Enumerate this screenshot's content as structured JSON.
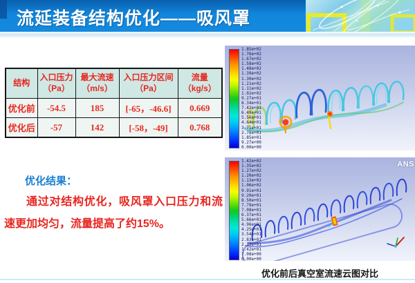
{
  "header": {
    "title": "流延装备结构优化——吸风罩"
  },
  "table": {
    "columns": [
      {
        "line1": "结构",
        "line2": ""
      },
      {
        "line1": "入口压力",
        "line2": "（Pa）"
      },
      {
        "line1": "最大流速",
        "line2": "（m/s）"
      },
      {
        "line1": "入口压力区间",
        "line2": "（Pa）"
      },
      {
        "line1": "流量",
        "line2": "（kg/s）"
      }
    ],
    "rows": [
      {
        "label": "优化前",
        "values": [
          "-54.5",
          "185",
          "[-65，-46.6]",
          "0.669"
        ]
      },
      {
        "label": "优化后",
        "values": [
          "-57",
          "142",
          "[-58，-49]",
          "0.768"
        ]
      }
    ]
  },
  "result": {
    "heading": "优化结果：",
    "body": "通过对结构优化，吸风罩入口压力和流速更加均匀，流量提高了约15%。"
  },
  "figures": {
    "caption": "优化前后真空室流速云图对比",
    "watermark": "ANS",
    "before": {
      "legend": [
        "1.85e+02",
        "1.76e+02",
        "1.67e+02",
        "1.58e+02",
        "1.48e+02",
        "1.39e+02",
        "1.30e+02",
        "1.21e+02",
        "1.11e+02",
        "1.02e+02",
        "9.27e+01",
        "8.34e+01",
        "7.42e+01",
        "6.49e+01",
        "5.56e+01",
        "4.64e+01",
        "3.71e+01",
        "2.78e+01",
        "1.85e+01",
        "9.27e+00",
        "0.00e+00"
      ]
    },
    "after": {
      "legend": [
        "1.42e+02",
        "1.35e+02",
        "1.27e+02",
        "1.20e+02",
        "1.13e+02",
        "1.06e+02",
        "9.91e+01",
        "9.20e+01",
        "8.50e+01",
        "7.79e+01",
        "7.08e+01",
        "6.37e+01",
        "5.66e+01",
        "4.96e+01",
        "4.25e+01",
        "3.54e+01",
        "2.83e+01",
        "2.13e+01",
        "1.42e+01",
        "7.08e+00",
        "0.00e+00"
      ]
    }
  },
  "colors": {
    "header_blue": "#1489de",
    "separator_blue": "#cfe9f6",
    "table_header_bg": "#cfe8e4",
    "table_body_bg": "#eef5f2",
    "text_red": "#e8251f",
    "heading_blue": "#1b7fd2",
    "figure_bg_top": "#a9b4e0",
    "legend_max_color": "#ff0000",
    "legend_min_color": "#0000dd"
  }
}
